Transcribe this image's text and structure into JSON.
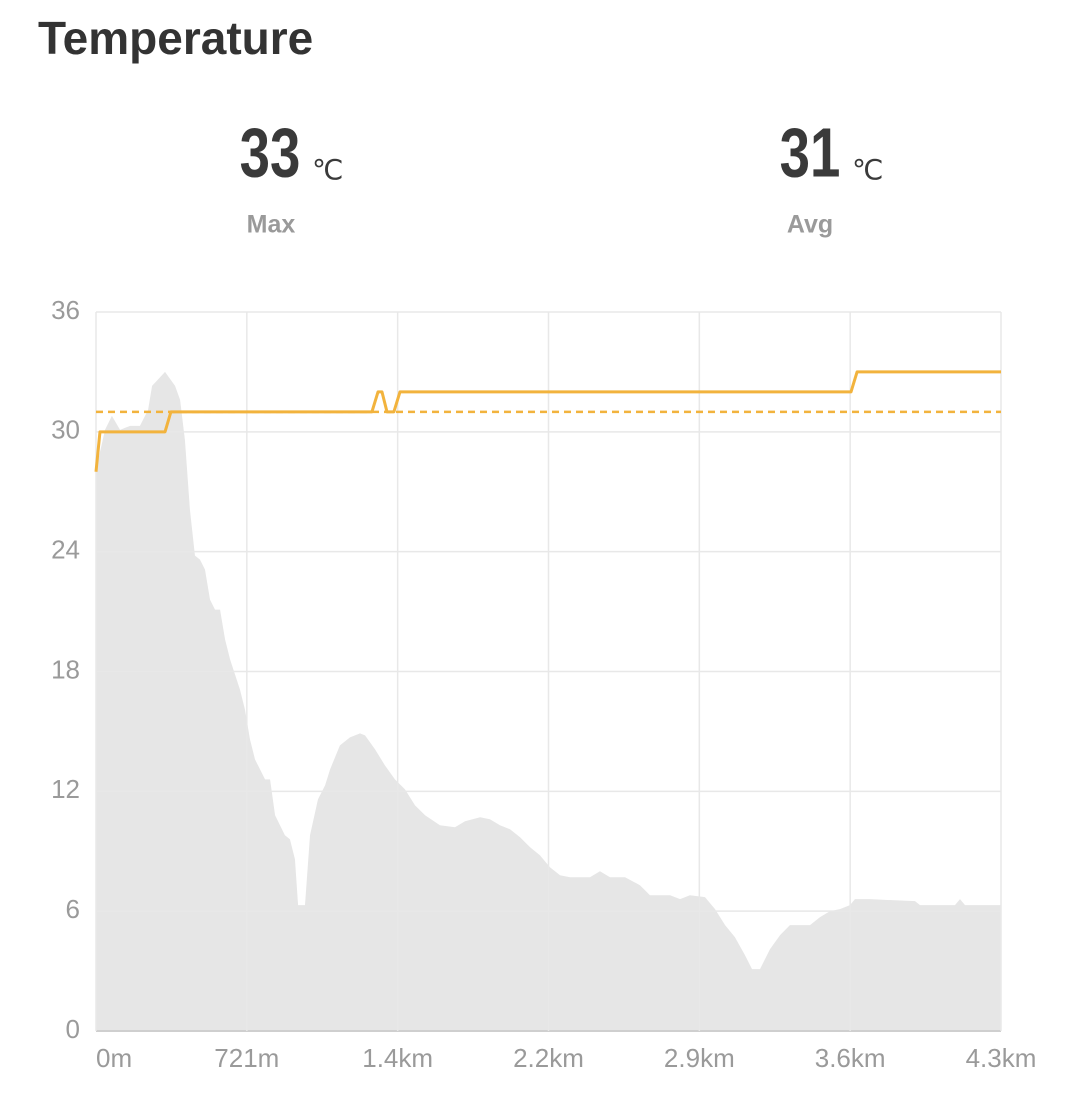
{
  "header": {
    "title": "Temperature",
    "stats": [
      {
        "value": 33,
        "unit": "℃",
        "label": "Max"
      },
      {
        "value": 31,
        "unit": "℃",
        "label": "Avg"
      }
    ]
  },
  "chart_data": {
    "type": "line",
    "xlim": [
      0,
      4326
    ],
    "ylim": [
      0,
      36
    ],
    "xticks": [
      {
        "value": 0,
        "label": "0m"
      },
      {
        "value": 721,
        "label": "721m"
      },
      {
        "value": 1442,
        "label": "1.4km"
      },
      {
        "value": 2163,
        "label": "2.2km"
      },
      {
        "value": 2884,
        "label": "2.9km"
      },
      {
        "value": 3605,
        "label": "3.6km"
      },
      {
        "value": 4326,
        "label": "4.3km"
      }
    ],
    "yticks": [
      0,
      6,
      12,
      18,
      24,
      30,
      36
    ],
    "grid": true,
    "series": [
      {
        "kind": "area",
        "color": "#e6e6e6",
        "x": [
          0,
          43,
          76,
          115,
          163,
          210,
          249,
          268,
          330,
          378,
          402,
          425,
          449,
          473,
          497,
          521,
          545,
          569,
          593,
          617,
          641,
          688,
          712,
          736,
          760,
          784,
          808,
          832,
          856,
          903,
          927,
          951,
          966,
          999,
          1023,
          1061,
          1095,
          1119,
          1166,
          1214,
          1262,
          1286,
          1334,
          1381,
          1429,
          1477,
          1525,
          1573,
          1644,
          1716,
          1764,
          1836,
          1883,
          1931,
          1979,
          2027,
          2075,
          2122,
          2170,
          2218,
          2266,
          2361,
          2409,
          2457,
          2529,
          2600,
          2648,
          2744,
          2792,
          2839,
          2911,
          2959,
          3007,
          3054,
          3102,
          3136,
          3174,
          3222,
          3270,
          3317,
          3413,
          3461,
          3509,
          3556,
          3604,
          3628,
          3700,
          3915,
          3939,
          4106,
          4130,
          4154,
          4326
        ],
        "values": [
          28.1,
          30.1,
          30.8,
          30.1,
          30.3,
          30.3,
          31.1,
          32.3,
          33.0,
          32.3,
          31.6,
          29.6,
          26.1,
          23.8,
          23.6,
          23.1,
          21.6,
          21.1,
          21.1,
          19.6,
          18.6,
          17.1,
          16.1,
          14.6,
          13.6,
          13.1,
          12.6,
          12.6,
          10.8,
          9.8,
          9.6,
          8.6,
          6.3,
          6.3,
          9.8,
          11.6,
          12.3,
          13.1,
          14.3,
          14.7,
          14.9,
          14.8,
          14.1,
          13.3,
          12.6,
          12.1,
          11.3,
          10.8,
          10.3,
          10.2,
          10.5,
          10.7,
          10.6,
          10.3,
          10.1,
          9.7,
          9.2,
          8.8,
          8.2,
          7.8,
          7.7,
          7.7,
          8.0,
          7.7,
          7.7,
          7.3,
          6.8,
          6.8,
          6.6,
          6.8,
          6.7,
          6.1,
          5.3,
          4.7,
          3.8,
          3.1,
          3.1,
          4.1,
          4.8,
          5.3,
          5.3,
          5.7,
          6.0,
          6.1,
          6.3,
          6.6,
          6.6,
          6.5,
          6.3,
          6.3,
          6.6,
          6.3,
          6.3
        ]
      },
      {
        "kind": "line",
        "color": "#f2b33d",
        "x": [
          0,
          19,
          330,
          358,
          1319,
          1348,
          1367,
          1391,
          1424,
          1453,
          3609,
          3638,
          4326
        ],
        "values": [
          28,
          30,
          30,
          31,
          31,
          32,
          32,
          31,
          31,
          32,
          32,
          33,
          33
        ]
      }
    ],
    "reference_lines": [
      {
        "value": 31,
        "color": "#f2b33d",
        "dashed": true
      }
    ]
  }
}
